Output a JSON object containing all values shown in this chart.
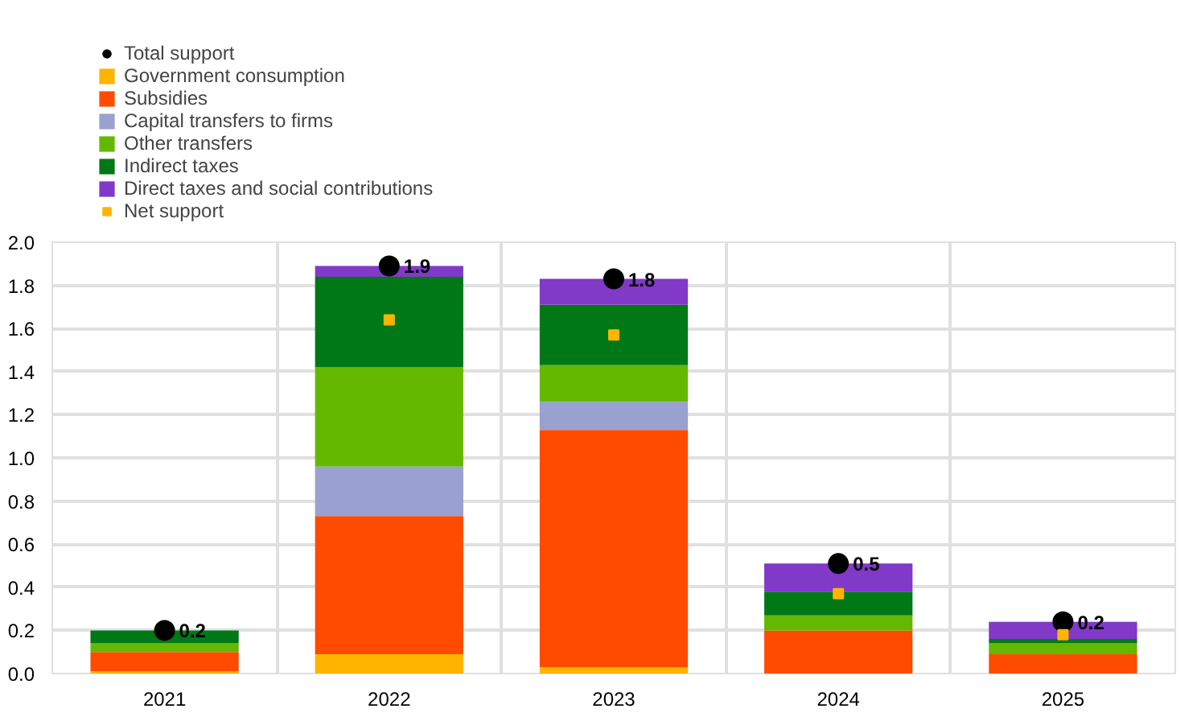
{
  "chart_data": {
    "type": "bar",
    "stacked": true,
    "categories": [
      "2021",
      "2022",
      "2023",
      "2024",
      "2025"
    ],
    "series": [
      {
        "name": "Total support",
        "type": "scatter",
        "marker": "circle",
        "color": "#000000",
        "values": [
          0.2,
          1.89,
          1.83,
          0.51,
          0.24
        ],
        "value_labels": [
          "0.2",
          "1.9",
          "1.8",
          "0.5",
          "0.2"
        ]
      },
      {
        "name": "Government consumption",
        "color": "#ffb400",
        "values": [
          0.01,
          0.09,
          0.03,
          0,
          0
        ]
      },
      {
        "name": "Subsidies",
        "color": "#ff4b00",
        "values": [
          0.09,
          0.64,
          1.1,
          0.2,
          0.09
        ]
      },
      {
        "name": "Capital transfers to firms",
        "color": "#98a1d0",
        "values": [
          0,
          0.23,
          0.13,
          0,
          0
        ]
      },
      {
        "name": "Other transfers",
        "color": "#65b800",
        "values": [
          0.04,
          0.46,
          0.17,
          0.07,
          0.05
        ]
      },
      {
        "name": "Indirect taxes",
        "color": "#007816",
        "values": [
          0.06,
          0.42,
          0.28,
          0.11,
          0.02
        ]
      },
      {
        "name": "Direct taxes and social contributions",
        "color": "#8139c8",
        "values": [
          0,
          0.05,
          0.12,
          0.13,
          0.08
        ]
      },
      {
        "name": "Net support",
        "type": "scatter",
        "marker": "square",
        "color": "#ffb400",
        "values": [
          null,
          1.64,
          1.57,
          0.37,
          0.18
        ]
      }
    ],
    "ylim": [
      0,
      2.0
    ],
    "yticks": [
      {
        "value": 0,
        "label": "0.0"
      },
      {
        "value": 0.2,
        "label": "0.2"
      },
      {
        "value": 0.4,
        "label": "0.4"
      },
      {
        "value": 0.6,
        "label": "0.6"
      },
      {
        "value": 0.8,
        "label": "0.8"
      },
      {
        "value": 1.0,
        "label": "1.0"
      },
      {
        "value": 1.2,
        "label": "1.2"
      },
      {
        "value": 1.4,
        "label": "1.4"
      },
      {
        "value": 1.6,
        "label": "1.6"
      },
      {
        "value": 1.8,
        "label": "1.8"
      },
      {
        "value": 2.0,
        "label": "2.0"
      }
    ],
    "grid": true,
    "legend": "top left"
  }
}
